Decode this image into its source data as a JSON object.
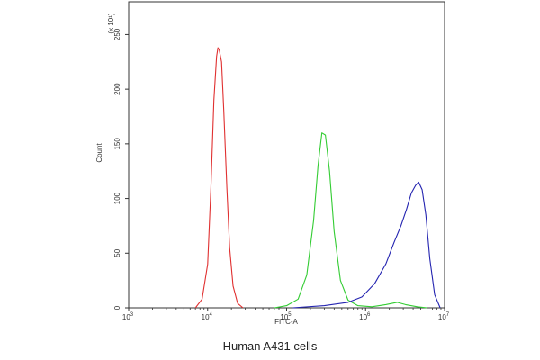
{
  "chart_data": {
    "type": "line",
    "title": "",
    "xlabel": "FITC-A",
    "ylabel": "Count",
    "y_multiplier": "(x 10¹)",
    "x_scale": "log",
    "xlim": [
      1000,
      10000000
    ],
    "ylim": [
      0,
      280
    ],
    "x_ticks": [
      {
        "value": 1000,
        "base": "10",
        "exp": "3"
      },
      {
        "value": 10000,
        "base": "10",
        "exp": "4"
      },
      {
        "value": 100000,
        "base": "10",
        "exp": "5"
      },
      {
        "value": 1000000,
        "base": "10",
        "exp": "6"
      },
      {
        "value": 10000000,
        "base": "10",
        "exp": "7"
      }
    ],
    "y_ticks": [
      0,
      50,
      100,
      150,
      200,
      250
    ],
    "grid": false,
    "series": [
      {
        "color": "#e03030",
        "x": [
          7000,
          8500,
          10000,
          11000,
          12000,
          13000,
          13500,
          14000,
          15000,
          16000,
          17500,
          19000,
          21000,
          24000,
          28000
        ],
        "y": [
          0,
          8,
          40,
          110,
          190,
          230,
          238,
          236,
          225,
          180,
          110,
          55,
          20,
          4,
          0
        ]
      },
      {
        "color": "#33cc33",
        "x": [
          70000,
          100000,
          140000,
          180000,
          220000,
          250000,
          280000,
          310000,
          350000,
          400000,
          480000,
          600000,
          800000,
          1200000,
          1800000,
          2500000,
          3200000,
          4500000,
          6000000
        ],
        "y": [
          0,
          2,
          8,
          30,
          80,
          130,
          160,
          158,
          125,
          70,
          25,
          7,
          2,
          1,
          3,
          5,
          3,
          1,
          0
        ]
      },
      {
        "color": "#2323b0",
        "x": [
          120000,
          300000,
          600000,
          900000,
          1300000,
          1800000,
          2300000,
          2800000,
          3300000,
          3800000,
          4300000,
          4700000,
          5200000,
          5800000,
          6500000,
          7500000,
          8800000
        ],
        "y": [
          0,
          2,
          5,
          10,
          22,
          40,
          60,
          75,
          90,
          105,
          112,
          115,
          108,
          85,
          45,
          12,
          0
        ]
      }
    ],
    "caption": "Human A431 cells"
  }
}
